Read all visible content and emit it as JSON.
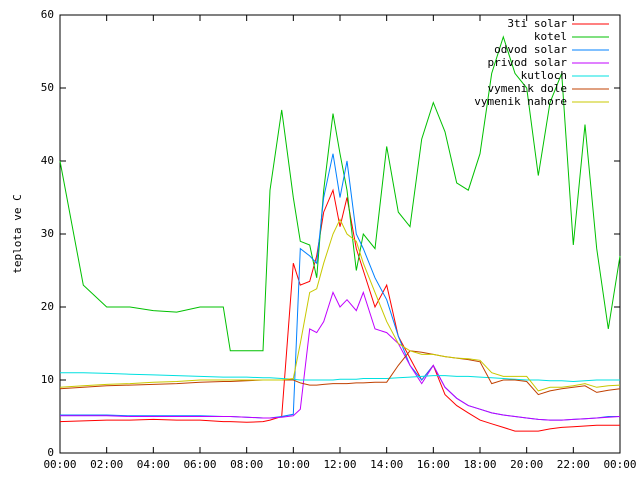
{
  "chart_data": {
    "type": "line",
    "y_label": "teplota ve C",
    "x": [
      0,
      1,
      2,
      3,
      4,
      5,
      6,
      7,
      7.3,
      8,
      8.7,
      9,
      9.5,
      10,
      10.3,
      10.7,
      11,
      11.3,
      11.7,
      12,
      12.3,
      12.7,
      13,
      13.5,
      14,
      14.5,
      15,
      15.5,
      16,
      16.5,
      17,
      17.5,
      18,
      18.5,
      19,
      19.5,
      20,
      20.5,
      21,
      21.5,
      22,
      22.5,
      23,
      23.5,
      24
    ],
    "xlim": [
      0,
      24
    ],
    "xticks": [
      {
        "value": 0,
        "label": "00:00"
      },
      {
        "value": 2,
        "label": "02:00"
      },
      {
        "value": 4,
        "label": "04:00"
      },
      {
        "value": 6,
        "label": "06:00"
      },
      {
        "value": 8,
        "label": "08:00"
      },
      {
        "value": 10,
        "label": "10:00"
      },
      {
        "value": 12,
        "label": "12:00"
      },
      {
        "value": 14,
        "label": "14:00"
      },
      {
        "value": 16,
        "label": "16:00"
      },
      {
        "value": 18,
        "label": "18:00"
      },
      {
        "value": 20,
        "label": "20:00"
      },
      {
        "value": 22,
        "label": "22:00"
      },
      {
        "value": 24,
        "label": "00:00"
      }
    ],
    "ylim": [
      0,
      60
    ],
    "yticks": [
      0,
      10,
      20,
      30,
      40,
      50,
      60
    ],
    "series": [
      {
        "name": "3ti solar",
        "color": "#ff0000",
        "values": [
          4.3,
          4.4,
          4.5,
          4.5,
          4.6,
          4.5,
          4.5,
          4.3,
          4.3,
          4.2,
          4.3,
          4.5,
          5,
          26,
          23,
          23.5,
          27,
          33,
          36,
          31,
          35,
          28,
          25,
          20,
          23,
          16,
          13,
          10,
          12,
          8,
          6.5,
          5.5,
          4.5,
          4,
          3.5,
          3,
          3,
          3,
          3.3,
          3.5,
          3.6,
          3.7,
          3.8,
          3.8,
          3.8
        ]
      },
      {
        "name": "kotel",
        "color": "#00c000",
        "values": [
          40,
          23,
          20,
          20,
          19.5,
          19.3,
          20,
          20,
          14,
          14,
          14,
          36,
          47,
          35,
          29,
          28.5,
          24,
          36,
          46.5,
          41,
          36,
          25,
          30,
          28,
          42,
          33,
          31,
          43,
          48,
          44,
          37,
          36,
          41,
          52,
          57,
          52,
          50,
          38,
          48,
          52,
          28.5,
          45,
          28,
          17,
          27
        ]
      },
      {
        "name": "odvod solar",
        "color": "#0080ff",
        "values": [
          5.2,
          5.2,
          5.2,
          5.1,
          5.1,
          5.1,
          5.1,
          5,
          5,
          4.9,
          4.8,
          4.8,
          5,
          5.3,
          28,
          27,
          26,
          35,
          41,
          35,
          40,
          30,
          28,
          24,
          21,
          16,
          12,
          10,
          12,
          9,
          7.5,
          6.5,
          6,
          5.5,
          5.2,
          5,
          4.8,
          4.6,
          4.5,
          4.5,
          4.6,
          4.7,
          4.8,
          5,
          5
        ]
      },
      {
        "name": "privod solar",
        "color": "#c000ff",
        "values": [
          5.1,
          5.1,
          5.1,
          5,
          5,
          5,
          5,
          5,
          5,
          4.9,
          4.8,
          4.8,
          4.9,
          5.1,
          6,
          17,
          16.5,
          18,
          22,
          20,
          21,
          19.5,
          22,
          17,
          16.5,
          15,
          12,
          9.5,
          12,
          9,
          7.5,
          6.5,
          6,
          5.5,
          5.2,
          5,
          4.8,
          4.6,
          4.5,
          4.5,
          4.6,
          4.7,
          4.8,
          4.9,
          5
        ]
      },
      {
        "name": "kutloch",
        "color": "#00e0e0",
        "values": [
          11,
          11,
          10.9,
          10.8,
          10.7,
          10.6,
          10.5,
          10.4,
          10.4,
          10.4,
          10.3,
          10.3,
          10.2,
          10.1,
          10,
          10,
          10,
          10,
          10,
          10.1,
          10.1,
          10.1,
          10.2,
          10.2,
          10.2,
          10.3,
          10.4,
          10.5,
          10.6,
          10.6,
          10.5,
          10.5,
          10.4,
          10.3,
          10.2,
          10.1,
          10,
          10,
          9.9,
          9.9,
          9.8,
          9.9,
          10,
          10,
          10
        ]
      },
      {
        "name": "vymenik dole",
        "color": "#c04000",
        "values": [
          8.8,
          9,
          9.2,
          9.3,
          9.4,
          9.5,
          9.7,
          9.8,
          9.8,
          9.9,
          10,
          10,
          10,
          10,
          9.6,
          9.3,
          9.3,
          9.4,
          9.5,
          9.5,
          9.5,
          9.6,
          9.6,
          9.7,
          9.7,
          12,
          14,
          13.8,
          13.5,
          13.2,
          13,
          12.8,
          12.5,
          9.5,
          10,
          10,
          9.8,
          8,
          8.5,
          8.8,
          9,
          9.2,
          8.3,
          8.6,
          8.8
        ]
      },
      {
        "name": "vymenik nahore",
        "color": "#c8c800",
        "values": [
          9,
          9.2,
          9.4,
          9.5,
          9.7,
          9.8,
          10,
          10,
          10,
          10,
          10,
          10,
          10,
          10.2,
          15,
          22,
          22.5,
          26,
          30,
          32,
          30,
          29,
          26,
          22,
          18,
          15,
          14,
          13.5,
          13.5,
          13.2,
          13,
          12.9,
          12.7,
          11,
          10.5,
          10.5,
          10.5,
          8.5,
          9,
          9,
          9.2,
          9.5,
          9,
          9.2,
          9.3
        ]
      }
    ]
  }
}
